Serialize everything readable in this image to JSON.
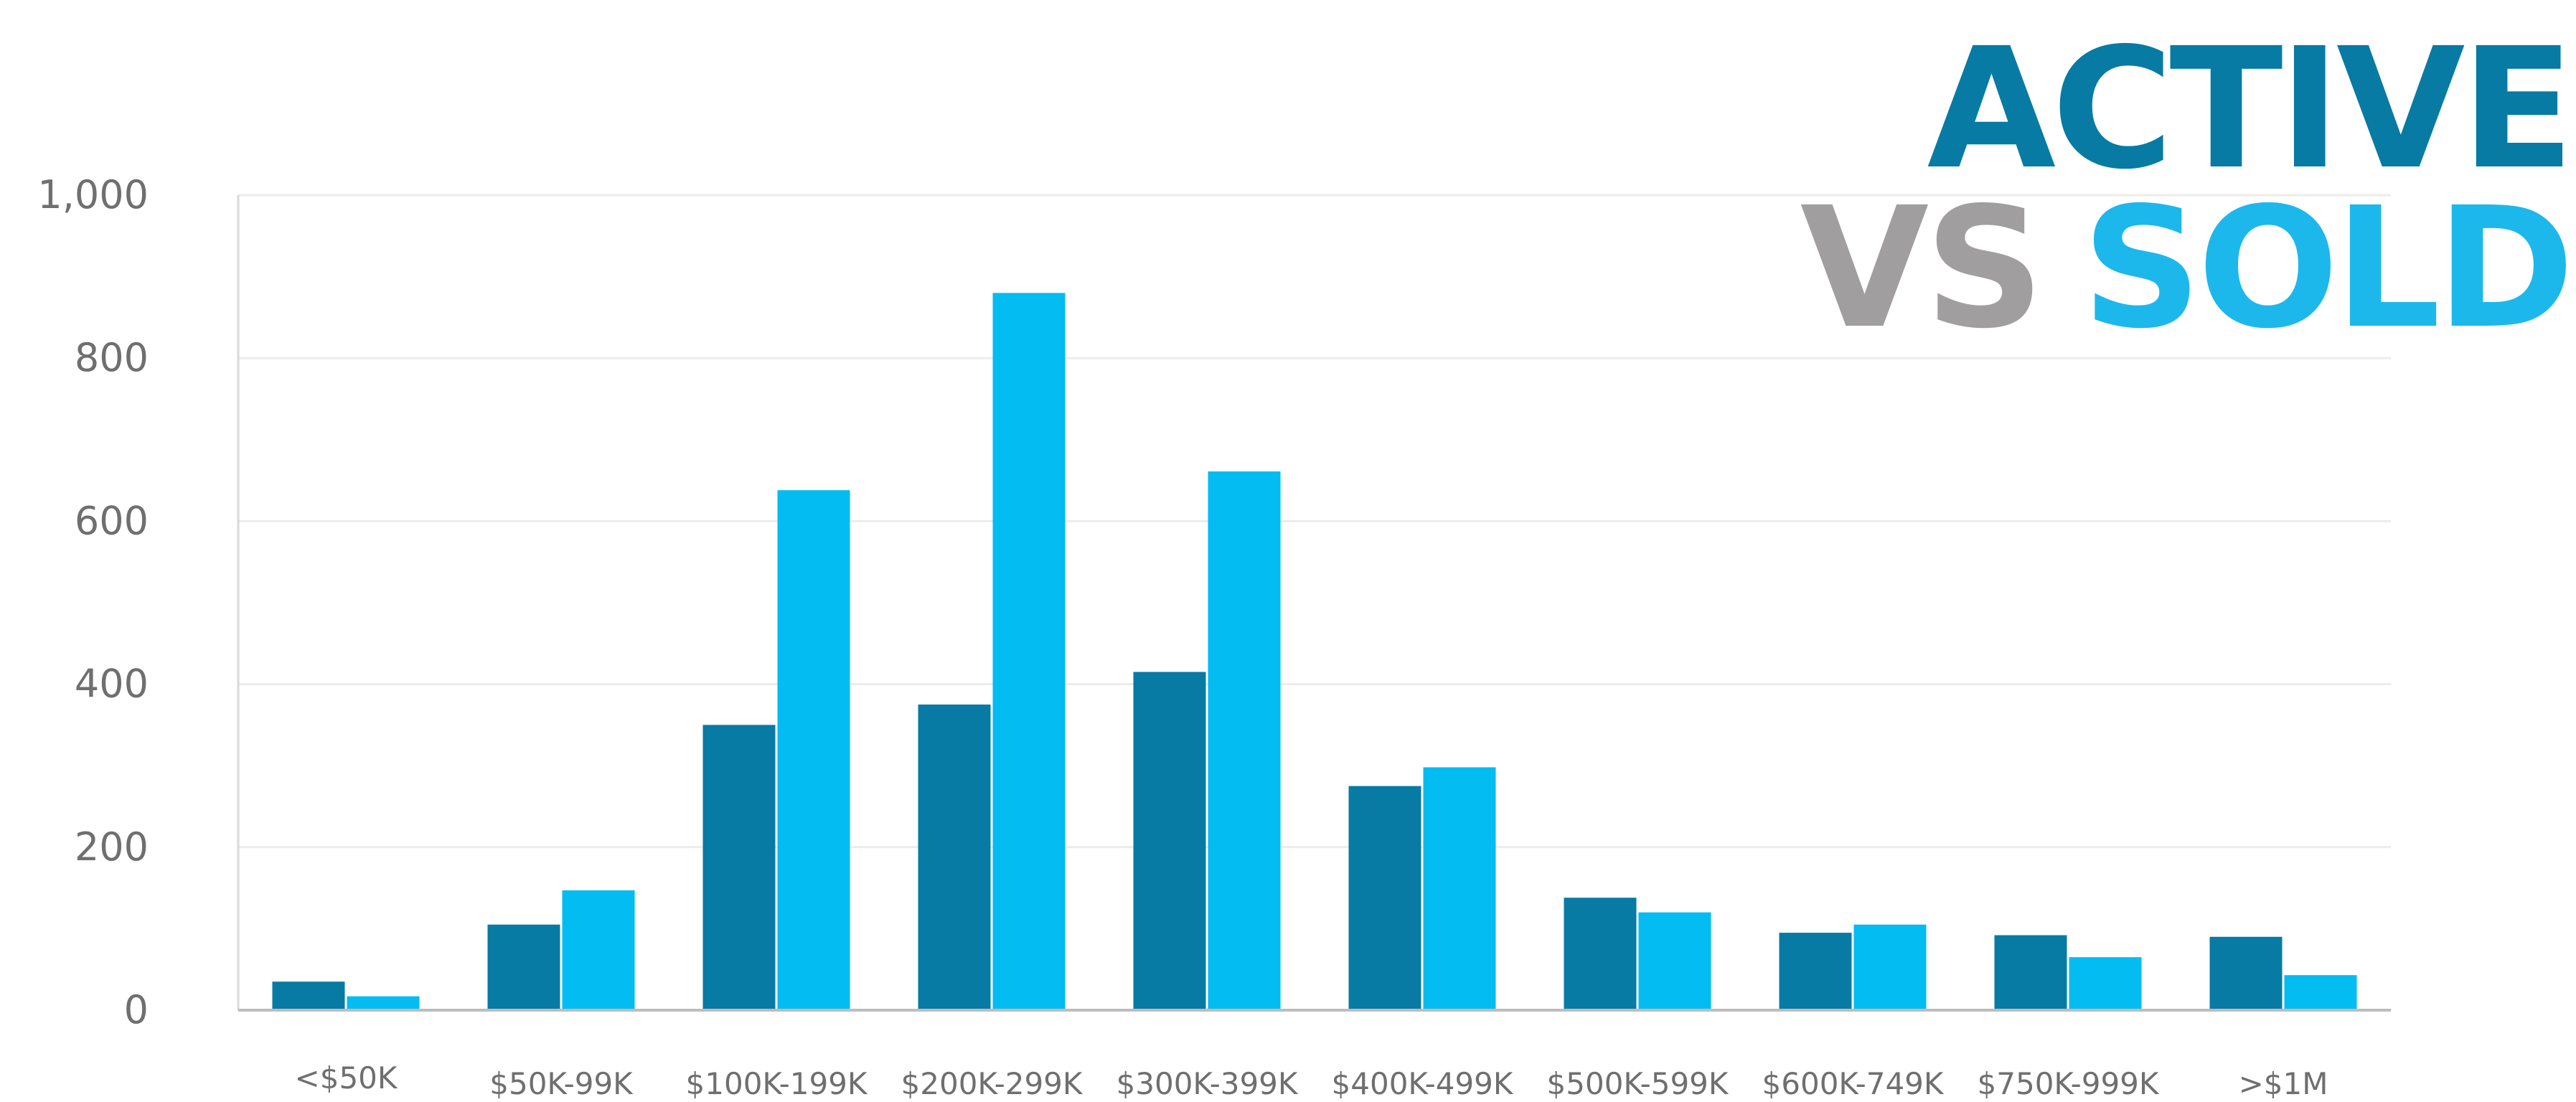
{
  "title": {
    "line1_word": "ACTIVE",
    "line2_word1": "VS",
    "line2_word2": "SOLD",
    "colors": {
      "active": "#077ba3",
      "vs": "#a09e9e",
      "sold": "#1cb8ec"
    }
  },
  "chart_data": {
    "type": "bar",
    "title": "ACTIVE VS SOLD",
    "xlabel": "",
    "ylabel": "",
    "categories": [
      "<$50K",
      "$50K-99K",
      "$100K-199K",
      "$200K-299K",
      "$300K-399K",
      "$400K-499K",
      "$500K-599K",
      "$600K-749K",
      "$750K-999K",
      ">$1M"
    ],
    "series": [
      {
        "name": "ACTIVE",
        "color": "#077ba3",
        "values": [
          35,
          105,
          350,
          375,
          415,
          275,
          138,
          95,
          92,
          90
        ]
      },
      {
        "name": "SOLD",
        "color": "#02bcf2",
        "values": [
          17,
          147,
          638,
          880,
          661,
          298,
          120,
          105,
          65,
          43
        ]
      }
    ],
    "ylim": [
      0,
      1000
    ],
    "yticks": [
      0,
      200,
      400,
      600,
      800,
      "1,000"
    ],
    "grid": true,
    "legend": "none"
  }
}
